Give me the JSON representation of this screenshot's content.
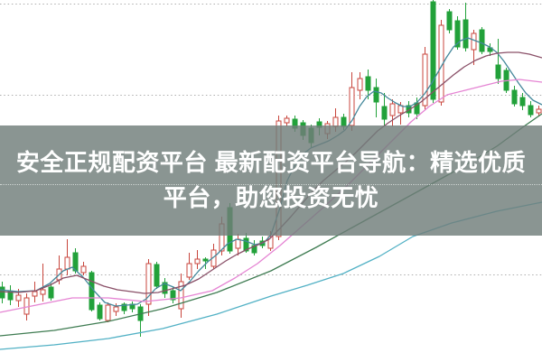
{
  "banner": {
    "line1": "安全正规配资平台 最新配资平台导航：精选优质",
    "line2": "平台，助您投资无忧",
    "text_color": "#ffffff",
    "band_color": "rgba(112,126,122,0.82)"
  },
  "chart_data": {
    "type": "candlestick",
    "title": "",
    "xlabel": "",
    "ylabel": "",
    "axes_labels_visible": false,
    "units": "pixel coordinates on 600x401 canvas, y increases downward",
    "background": "#ffffff",
    "grid": {
      "style": "dotted",
      "color": "#aeaeae",
      "y_positions": [
        4,
        105,
        204,
        304
      ]
    },
    "up_candle": {
      "style": "hollow",
      "color": "#c8453c"
    },
    "down_candle": {
      "style": "solid",
      "color": "#22a13a"
    },
    "candle_width": 5,
    "candles": [
      [
        2,
        312,
        318,
        330,
        336,
        "d"
      ],
      [
        11,
        316,
        323,
        332,
        338,
        "d"
      ],
      [
        20,
        320,
        327,
        333,
        340,
        "u"
      ],
      [
        29,
        325,
        330,
        348,
        355,
        "u"
      ],
      [
        38,
        312,
        323,
        328,
        335,
        "u"
      ],
      [
        47,
        292,
        321,
        326,
        334,
        "u"
      ],
      [
        56,
        314,
        318,
        330,
        333,
        "d"
      ],
      [
        65,
        283,
        298,
        310,
        315,
        "u"
      ],
      [
        74,
        265,
        285,
        298,
        305,
        "u"
      ],
      [
        83,
        275,
        280,
        300,
        303,
        "d"
      ],
      [
        92,
        290,
        295,
        302,
        305,
        "u"
      ],
      [
        101,
        300,
        302,
        343,
        345,
        "d"
      ],
      [
        110,
        335,
        338,
        353,
        355,
        "d"
      ],
      [
        119,
        335,
        338,
        355,
        357,
        "u"
      ],
      [
        128,
        336,
        340,
        345,
        350,
        "u"
      ],
      [
        137,
        335,
        337,
        344,
        348,
        "d"
      ],
      [
        146,
        334,
        337,
        342,
        346,
        "d"
      ],
      [
        155,
        337,
        340,
        355,
        373,
        "d"
      ],
      [
        164,
        287,
        292,
        337,
        350,
        "u"
      ],
      [
        173,
        290,
        293,
        317,
        320,
        "d"
      ],
      [
        182,
        308,
        313,
        325,
        330,
        "d"
      ],
      [
        191,
        318,
        322,
        332,
        336,
        "d"
      ],
      [
        200,
        303,
        312,
        342,
        352,
        "u"
      ],
      [
        209,
        280,
        292,
        307,
        310,
        "u"
      ],
      [
        218,
        277,
        287,
        292,
        298,
        "u"
      ],
      [
        227,
        285,
        287,
        289,
        298,
        "d"
      ],
      [
        236,
        270,
        277,
        295,
        298,
        "u"
      ],
      [
        245,
        240,
        248,
        278,
        283,
        "u"
      ],
      [
        254,
        225,
        230,
        278,
        281,
        "d"
      ],
      [
        263,
        259,
        265,
        275,
        283,
        "u"
      ],
      [
        272,
        258,
        264,
        278,
        280,
        "d"
      ],
      [
        281,
        266,
        272,
        280,
        283,
        "d"
      ],
      [
        290,
        262,
        267,
        272,
        275,
        "d"
      ],
      [
        299,
        256,
        262,
        275,
        278,
        "u"
      ],
      [
        308,
        128,
        134,
        262,
        266,
        "u"
      ],
      [
        317,
        128,
        131,
        136,
        140,
        "u"
      ],
      [
        326,
        128,
        132,
        142,
        146,
        "d"
      ],
      [
        335,
        133,
        136,
        150,
        155,
        "d"
      ],
      [
        344,
        138,
        142,
        158,
        163,
        "d"
      ],
      [
        353,
        131,
        135,
        141,
        150,
        "d"
      ],
      [
        362,
        134,
        137,
        148,
        154,
        "u"
      ],
      [
        371,
        120,
        130,
        140,
        146,
        "u"
      ],
      [
        380,
        126,
        130,
        140,
        144,
        "d"
      ],
      [
        389,
        80,
        97,
        139,
        145,
        "u"
      ],
      [
        398,
        80,
        87,
        100,
        110,
        "u"
      ],
      [
        407,
        77,
        85,
        100,
        110,
        "d"
      ],
      [
        416,
        87,
        97,
        113,
        130,
        "d"
      ],
      [
        425,
        103,
        118,
        132,
        140,
        "d"
      ],
      [
        434,
        110,
        115,
        128,
        140,
        "u"
      ],
      [
        443,
        113,
        117,
        125,
        138,
        "u"
      ],
      [
        452,
        112,
        117,
        125,
        130,
        "d"
      ],
      [
        461,
        108,
        114,
        126,
        132,
        "d"
      ],
      [
        470,
        52,
        60,
        117,
        121,
        "u"
      ],
      [
        479,
        0,
        2,
        110,
        114,
        "d"
      ],
      [
        488,
        22,
        28,
        113,
        117,
        "u"
      ],
      [
        497,
        10,
        13,
        33,
        37,
        "d"
      ],
      [
        506,
        18,
        23,
        52,
        55,
        "d"
      ],
      [
        515,
        3,
        22,
        53,
        57,
        "d"
      ],
      [
        524,
        33,
        37,
        55,
        72,
        "u"
      ],
      [
        533,
        30,
        33,
        57,
        60,
        "d"
      ],
      [
        542,
        48,
        53,
        57,
        62,
        "d"
      ],
      [
        551,
        43,
        72,
        87,
        93,
        "d"
      ],
      [
        560,
        75,
        78,
        100,
        103,
        "d"
      ],
      [
        569,
        95,
        100,
        115,
        118,
        "d"
      ],
      [
        578,
        103,
        108,
        117,
        122,
        "d"
      ],
      [
        587,
        112,
        117,
        127,
        130,
        "d"
      ],
      [
        596,
        117,
        121,
        125,
        128,
        "u"
      ]
    ],
    "moving_averages": [
      {
        "name": "MA5",
        "color": "#44889b",
        "points": [
          [
            0,
            321
          ],
          [
            20,
            323
          ],
          [
            40,
            322
          ],
          [
            55,
            314
          ],
          [
            70,
            300
          ],
          [
            80,
            296
          ],
          [
            92,
            307
          ],
          [
            104,
            322
          ],
          [
            116,
            335
          ],
          [
            128,
            339
          ],
          [
            140,
            338
          ],
          [
            152,
            337
          ],
          [
            162,
            331
          ],
          [
            172,
            320
          ],
          [
            182,
            314
          ],
          [
            192,
            318
          ],
          [
            200,
            322
          ],
          [
            210,
            312
          ],
          [
            220,
            300
          ],
          [
            230,
            290
          ],
          [
            240,
            282
          ],
          [
            252,
            270
          ],
          [
            262,
            265
          ],
          [
            272,
            267
          ],
          [
            282,
            271
          ],
          [
            292,
            269
          ],
          [
            300,
            260
          ],
          [
            310,
            230
          ],
          [
            318,
            200
          ],
          [
            326,
            184
          ],
          [
            334,
            172
          ],
          [
            344,
            164
          ],
          [
            354,
            160
          ],
          [
            364,
            156
          ],
          [
            374,
            150
          ],
          [
            382,
            144
          ],
          [
            390,
            133
          ],
          [
            398,
            118
          ],
          [
            406,
            107
          ],
          [
            414,
            101
          ],
          [
            422,
            103
          ],
          [
            430,
            109
          ],
          [
            438,
            114
          ],
          [
            446,
            118
          ],
          [
            454,
            118
          ],
          [
            462,
            113
          ],
          [
            470,
            104
          ],
          [
            478,
            92
          ],
          [
            486,
            78
          ],
          [
            494,
            64
          ],
          [
            502,
            52
          ],
          [
            510,
            45
          ],
          [
            518,
            42
          ],
          [
            526,
            45
          ],
          [
            534,
            48
          ],
          [
            542,
            52
          ],
          [
            550,
            58
          ],
          [
            558,
            68
          ],
          [
            566,
            80
          ],
          [
            574,
            92
          ],
          [
            582,
            103
          ],
          [
            590,
            111
          ],
          [
            600,
            116
          ]
        ]
      },
      {
        "name": "MA10",
        "color": "#8a5068",
        "points": [
          [
            0,
            323
          ],
          [
            20,
            324
          ],
          [
            40,
            322
          ],
          [
            55,
            316
          ],
          [
            70,
            308
          ],
          [
            85,
            305
          ],
          [
            100,
            311
          ],
          [
            115,
            317
          ],
          [
            130,
            321
          ],
          [
            145,
            323
          ],
          [
            160,
            325
          ],
          [
            175,
            324
          ],
          [
            190,
            320
          ],
          [
            205,
            316
          ],
          [
            220,
            309
          ],
          [
            235,
            299
          ],
          [
            250,
            289
          ],
          [
            262,
            282
          ],
          [
            274,
            276
          ],
          [
            286,
            271
          ],
          [
            298,
            265
          ],
          [
            310,
            253
          ],
          [
            322,
            240
          ],
          [
            334,
            226
          ],
          [
            346,
            212
          ],
          [
            358,
            200
          ],
          [
            370,
            190
          ],
          [
            382,
            180
          ],
          [
            394,
            169
          ],
          [
            406,
            157
          ],
          [
            418,
            145
          ],
          [
            430,
            136
          ],
          [
            442,
            128
          ],
          [
            454,
            121
          ],
          [
            466,
            113
          ],
          [
            478,
            103
          ],
          [
            490,
            93
          ],
          [
            502,
            83
          ],
          [
            514,
            74
          ],
          [
            526,
            67
          ],
          [
            538,
            62
          ],
          [
            550,
            59
          ],
          [
            562,
            58
          ],
          [
            574,
            58
          ],
          [
            586,
            60
          ],
          [
            600,
            64
          ]
        ]
      },
      {
        "name": "MA20",
        "color": "#e584d3",
        "points": [
          [
            0,
            346
          ],
          [
            40,
            338
          ],
          [
            80,
            330
          ],
          [
            120,
            330
          ],
          [
            160,
            334
          ],
          [
            200,
            330
          ],
          [
            235,
            322
          ],
          [
            260,
            308
          ],
          [
            285,
            292
          ],
          [
            310,
            272
          ],
          [
            335,
            250
          ],
          [
            360,
            228
          ],
          [
            385,
            205
          ],
          [
            410,
            180
          ],
          [
            435,
            155
          ],
          [
            455,
            135
          ],
          [
            475,
            118
          ],
          [
            495,
            105
          ],
          [
            515,
            100
          ],
          [
            535,
            95
          ],
          [
            555,
            90
          ],
          [
            575,
            88
          ],
          [
            600,
            91
          ]
        ]
      },
      {
        "name": "MA30",
        "color": "#3f7c52",
        "points": [
          [
            0,
            372
          ],
          [
            60,
            366
          ],
          [
            120,
            356
          ],
          [
            180,
            342
          ],
          [
            240,
            324
          ],
          [
            300,
            300
          ],
          [
            350,
            274
          ],
          [
            390,
            252
          ],
          [
            430,
            230
          ],
          [
            470,
            208
          ],
          [
            510,
            186
          ],
          [
            550,
            162
          ],
          [
            580,
            140
          ],
          [
            600,
            126
          ]
        ]
      },
      {
        "name": "MA60",
        "color": "#52b1c5",
        "points": [
          [
            0,
            387
          ],
          [
            60,
            382
          ],
          [
            120,
            375
          ],
          [
            180,
            364
          ],
          [
            240,
            348
          ],
          [
            300,
            328
          ],
          [
            340,
            316
          ],
          [
            380,
            303
          ],
          [
            420,
            284
          ],
          [
            457,
            262
          ],
          [
            500,
            247
          ],
          [
            550,
            234
          ],
          [
            600,
            224
          ]
        ]
      }
    ]
  }
}
